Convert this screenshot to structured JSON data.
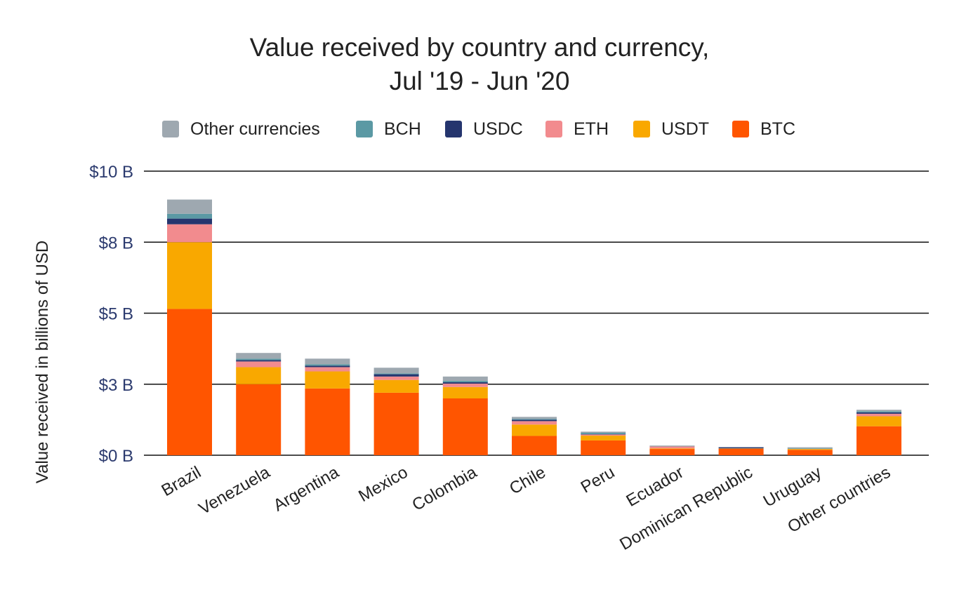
{
  "chart_data": {
    "type": "bar",
    "stacked": true,
    "title_lines": [
      "Value received by country and currency,",
      "Jul '19 - Jun '20"
    ],
    "ylabel": "Value received in billions of USD",
    "xlabel": "",
    "ylim": [
      0,
      10
    ],
    "yticks": [
      {
        "value": 0,
        "label": "$0 B"
      },
      {
        "value": 2.5,
        "label": "$3 B"
      },
      {
        "value": 5,
        "label": "$5 B"
      },
      {
        "value": 7.5,
        "label": "$8 B"
      },
      {
        "value": 10,
        "label": "$10 B"
      }
    ],
    "grid": true,
    "legend_position": "top",
    "categories": [
      "Brazil",
      "Venezuela",
      "Argentina",
      "Mexico",
      "Colombia",
      "Chile",
      "Peru",
      "Ecuador",
      "Dominican Republic",
      "Uruguay",
      "Other countries"
    ],
    "series": [
      {
        "name": "BTC",
        "color": "#ff5500",
        "values": [
          5.15,
          2.5,
          2.35,
          2.2,
          2.0,
          0.68,
          0.52,
          0.22,
          0.23,
          0.19,
          1.02
        ]
      },
      {
        "name": "USDT",
        "color": "#f9a800",
        "values": [
          2.35,
          0.6,
          0.6,
          0.45,
          0.4,
          0.4,
          0.17,
          0.02,
          0.01,
          0.03,
          0.35
        ]
      },
      {
        "name": "ETH",
        "color": "#f28b8e",
        "values": [
          0.63,
          0.2,
          0.15,
          0.12,
          0.12,
          0.12,
          0.04,
          0.07,
          0.0,
          0.0,
          0.09
        ]
      },
      {
        "name": "USDC",
        "color": "#25356e",
        "values": [
          0.2,
          0.05,
          0.05,
          0.08,
          0.05,
          0.05,
          0.01,
          0.0,
          0.04,
          0.0,
          0.05
        ]
      },
      {
        "name": "BCH",
        "color": "#5b99a4",
        "values": [
          0.17,
          0.05,
          0.05,
          0.03,
          0.05,
          0.03,
          0.05,
          0.01,
          0.0,
          0.02,
          0.04
        ]
      },
      {
        "name": "Other currencies",
        "color": "#9ea8b0",
        "values": [
          0.5,
          0.2,
          0.2,
          0.2,
          0.15,
          0.07,
          0.04,
          0.02,
          0.01,
          0.04,
          0.05
        ]
      }
    ],
    "legend_order": [
      "Other currencies",
      "BCH",
      "USDC",
      "ETH",
      "USDT",
      "BTC"
    ]
  }
}
